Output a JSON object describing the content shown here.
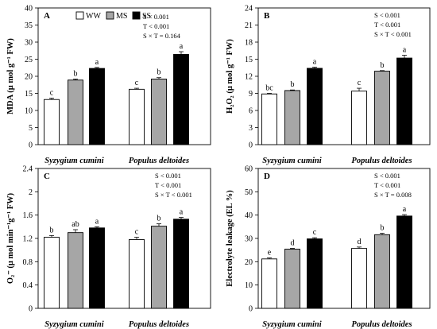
{
  "legend": [
    {
      "label": "WW",
      "color": "#ffffff"
    },
    {
      "label": "MS",
      "color": "#a6a6a6"
    },
    {
      "label": "SS",
      "color": "#000000"
    }
  ],
  "chart_data": [
    {
      "type": "bar",
      "panel": "A",
      "ylabel": "MDA (μ mol g⁻¹ FW)",
      "ylim": [
        0,
        40
      ],
      "yticks": [
        "0",
        "5",
        "10",
        "15",
        "20",
        "25",
        "30",
        "35",
        "40"
      ],
      "categories": [
        "Syzygium cumini",
        "Populus deltoides"
      ],
      "series": [
        {
          "name": "WW",
          "values": [
            13.2,
            16.2
          ],
          "errors": [
            0.4,
            0.3
          ],
          "letters": [
            "c",
            "c"
          ]
        },
        {
          "name": "MS",
          "values": [
            18.9,
            19.2
          ],
          "errors": [
            0.3,
            0.4
          ],
          "letters": [
            "b",
            "b"
          ]
        },
        {
          "name": "SS",
          "values": [
            22.3,
            26.4
          ],
          "errors": [
            0.3,
            0.8
          ],
          "letters": [
            "a",
            "a"
          ]
        }
      ],
      "stats": [
        "S < 0.001",
        "T < 0.001",
        "S × T = 0.164"
      ]
    },
    {
      "type": "bar",
      "panel": "B",
      "ylabel": "H₂O₂ (μ mol g⁻¹ FW)",
      "ylim": [
        0,
        24
      ],
      "yticks": [
        "0",
        "3",
        "6",
        "9",
        "12",
        "15",
        "18",
        "21",
        "24"
      ],
      "categories": [
        "Syzygium cumini",
        "Populus deltoides"
      ],
      "series": [
        {
          "name": "WW",
          "values": [
            8.9,
            9.4
          ],
          "errors": [
            0.1,
            0.5
          ],
          "letters": [
            "bc",
            "c"
          ]
        },
        {
          "name": "MS",
          "values": [
            9.5,
            12.9
          ],
          "errors": [
            0.1,
            0.1
          ],
          "letters": [
            "b",
            "b"
          ]
        },
        {
          "name": "SS",
          "values": [
            13.4,
            15.2
          ],
          "errors": [
            0.2,
            0.5
          ],
          "letters": [
            "a",
            "a"
          ]
        }
      ],
      "stats": [
        "S < 0.001",
        "T < 0.001",
        "S × T < 0.001"
      ]
    },
    {
      "type": "bar",
      "panel": "C",
      "ylabel": "O₂⁻ (μ mol min⁻¹g⁻¹ FW)",
      "ylim": [
        0,
        2.4
      ],
      "yticks": [
        "0",
        "0.4",
        "0.8",
        "1.2",
        "1.6",
        "2",
        "2.4"
      ],
      "categories": [
        "Syzygium cumini",
        "Populus deltoides"
      ],
      "series": [
        {
          "name": "WW",
          "values": [
            1.22,
            1.18
          ],
          "errors": [
            0.03,
            0.04
          ],
          "letters": [
            "b",
            "c"
          ]
        },
        {
          "name": "MS",
          "values": [
            1.3,
            1.41
          ],
          "errors": [
            0.05,
            0.04
          ],
          "letters": [
            "ab",
            "b"
          ]
        },
        {
          "name": "SS",
          "values": [
            1.38,
            1.53
          ],
          "errors": [
            0.02,
            0.03
          ],
          "letters": [
            "a",
            "a"
          ]
        }
      ],
      "stats": [
        "S < 0.001",
        "T < 0.001",
        "S × T < 0.001"
      ]
    },
    {
      "type": "bar",
      "panel": "D",
      "ylabel": "Electrolyte leakage (EL %)",
      "ylim": [
        0,
        60
      ],
      "yticks": [
        "0",
        "10",
        "20",
        "30",
        "40",
        "50",
        "60"
      ],
      "categories": [
        "Syzygium cumini",
        "Populus deltoides"
      ],
      "series": [
        {
          "name": "WW",
          "values": [
            21.2,
            25.7
          ],
          "errors": [
            0.4,
            0.6
          ],
          "letters": [
            "e",
            "d"
          ]
        },
        {
          "name": "MS",
          "values": [
            25.4,
            31.6
          ],
          "errors": [
            0.3,
            0.6
          ],
          "letters": [
            "d",
            "b"
          ]
        },
        {
          "name": "SS",
          "values": [
            29.8,
            39.6
          ],
          "errors": [
            0.5,
            0.6
          ],
          "letters": [
            "c",
            "a"
          ]
        }
      ],
      "stats": [
        "S < 0.001",
        "T < 0.001",
        "S × T = 0.008"
      ]
    }
  ]
}
